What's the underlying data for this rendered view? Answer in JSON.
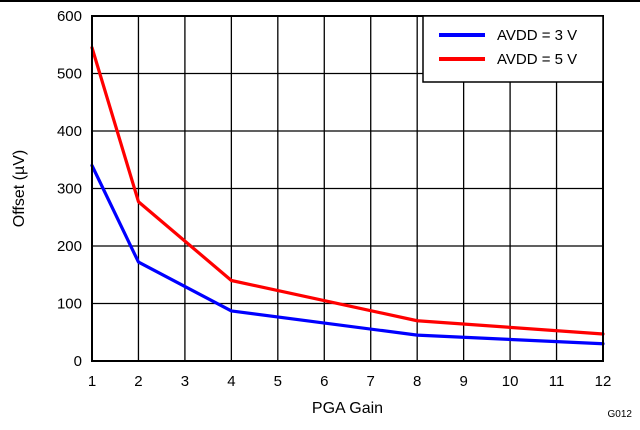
{
  "chart_data": {
    "type": "line",
    "xlabel": "PGA Gain",
    "ylabel": "Offset (µV)",
    "x": [
      1,
      2,
      4,
      8,
      12
    ],
    "x_tick_labels": [
      "1",
      "2",
      "3",
      "4",
      "5",
      "6",
      "7",
      "8",
      "9",
      "10",
      "11",
      "12"
    ],
    "y_tick_labels": [
      "0",
      "100",
      "200",
      "300",
      "400",
      "500",
      "600"
    ],
    "xlim": [
      1,
      12
    ],
    "ylim": [
      0,
      600
    ],
    "x_scale": "categorical-ordinal",
    "grid": true,
    "legend_position": "top-right",
    "series": [
      {
        "name": "AVDD = 3 V",
        "color": "#0000ff",
        "values": [
          340,
          172,
          87,
          45,
          30
        ]
      },
      {
        "name": "AVDD = 5 V",
        "color": "#ff0000",
        "values": [
          545,
          277,
          140,
          70,
          47
        ]
      }
    ],
    "figure_id": "G012"
  }
}
